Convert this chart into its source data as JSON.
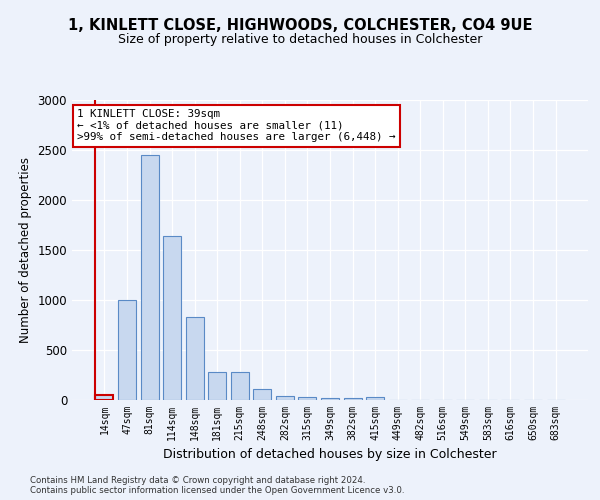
{
  "title_line1": "1, KINLETT CLOSE, HIGHWOODS, COLCHESTER, CO4 9UE",
  "title_line2": "Size of property relative to detached houses in Colchester",
  "xlabel": "Distribution of detached houses by size in Colchester",
  "ylabel": "Number of detached properties",
  "categories": [
    "14sqm",
    "47sqm",
    "81sqm",
    "114sqm",
    "148sqm",
    "181sqm",
    "215sqm",
    "248sqm",
    "282sqm",
    "315sqm",
    "349sqm",
    "382sqm",
    "415sqm",
    "449sqm",
    "482sqm",
    "516sqm",
    "549sqm",
    "583sqm",
    "616sqm",
    "650sqm",
    "683sqm"
  ],
  "values": [
    50,
    1000,
    2450,
    1640,
    830,
    280,
    280,
    110,
    45,
    35,
    25,
    20,
    30,
    0,
    0,
    0,
    0,
    0,
    0,
    0,
    0
  ],
  "bar_color": "#c8d8ef",
  "bar_edge_color": "#5a8ac6",
  "highlight_edge_color": "#cc0000",
  "annotation_text": "1 KINLETT CLOSE: 39sqm\n← <1% of detached houses are smaller (11)\n>99% of semi-detached houses are larger (6,448) →",
  "annotation_box_color": "#ffffff",
  "annotation_box_edge_color": "#cc0000",
  "ylim": [
    0,
    3000
  ],
  "yticks": [
    0,
    500,
    1000,
    1500,
    2000,
    2500,
    3000
  ],
  "footer_line1": "Contains HM Land Registry data © Crown copyright and database right 2024.",
  "footer_line2": "Contains public sector information licensed under the Open Government Licence v3.0.",
  "bg_color": "#edf2fb",
  "plot_bg_color": "#edf2fb"
}
